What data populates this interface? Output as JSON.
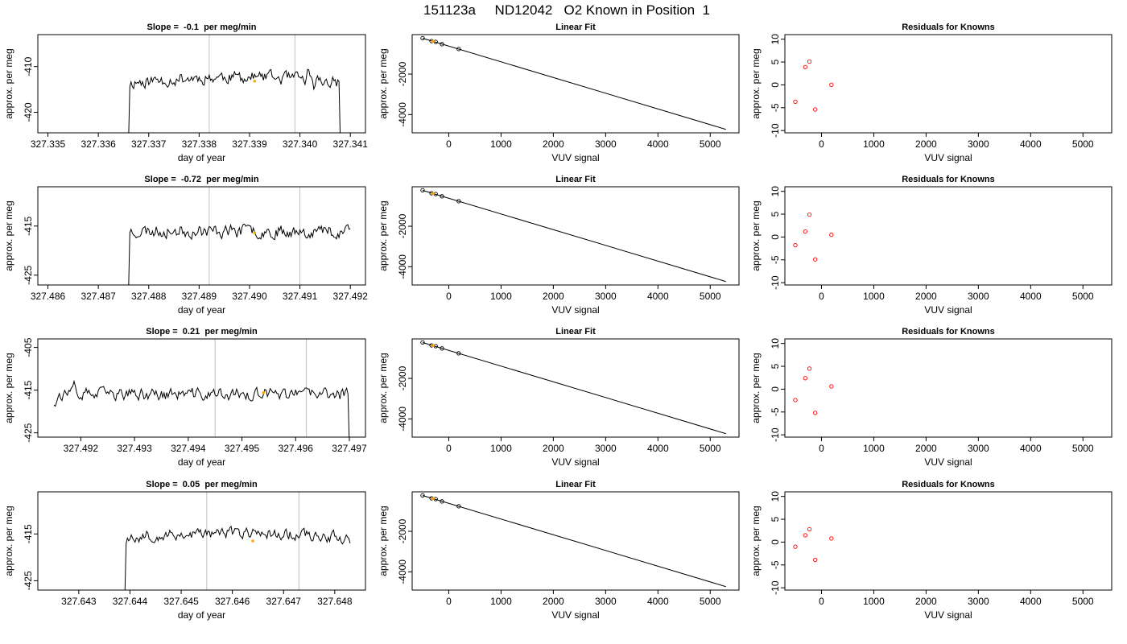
{
  "figure": {
    "title": "151123a     ND12042   O2 Known in Position  1"
  },
  "colors": {
    "trace": "#000000",
    "vline": "#bebebe",
    "marker": "#ffa500",
    "residual": "#ff0000",
    "fitline": "#000000"
  },
  "chart_data": [
    {
      "type": "line",
      "row": 0,
      "col": 0,
      "title": "Slope =  -0.1  per meg/min",
      "xlabel": "day of year",
      "ylabel": "approx. per meg",
      "xlim": [
        327.3348,
        327.3413
      ],
      "ylim": [
        -424.5,
        -403
      ],
      "xticks": [
        327.335,
        327.336,
        327.337,
        327.338,
        327.339,
        327.34,
        327.341
      ],
      "xtick_labels": [
        "327.335",
        "327.336",
        "327.337",
        "327.338",
        "327.339",
        "327.340",
        "327.341"
      ],
      "yticks": [
        -410,
        -420
      ],
      "ytick_labels": [
        "-410",
        "-420"
      ],
      "trace": {
        "start": 327.3366,
        "end": 327.3408,
        "step": 2.5e-05,
        "base": -413.5,
        "amp": 2.2,
        "drop_start": -426,
        "drop_end": -426,
        "seed": 11,
        "tilt": 1.2
      },
      "vlines": [
        327.3382,
        327.3399
      ],
      "marker": {
        "x": 327.3391,
        "y": -413.2
      }
    },
    {
      "type": "scatter",
      "row": 0,
      "col": 1,
      "title": "Linear Fit",
      "xlabel": "VUV signal",
      "ylabel": "approx. per meg",
      "xlim": [
        -700,
        5550
      ],
      "ylim": [
        -4900,
        -50
      ],
      "xticks": [
        0,
        1000,
        2000,
        3000,
        4000,
        5000
      ],
      "xtick_labels": [
        "0",
        "1000",
        "2000",
        "3000",
        "4000",
        "5000"
      ],
      "yticks": [
        -2000,
        -4000
      ],
      "ytick_labels": [
        "-2000",
        "-4000"
      ],
      "fitline": {
        "x": [
          -500,
          5300
        ],
        "y": [
          -230,
          -4730
        ]
      },
      "points": {
        "x": [
          -500,
          -330,
          -250,
          -130,
          190
        ],
        "y": [
          -225,
          -370,
          -410,
          -520,
          -760
        ]
      },
      "marker": {
        "x": -300,
        "y": -380
      }
    },
    {
      "type": "scatter",
      "row": 0,
      "col": 2,
      "title": "Residuals for Knowns",
      "xlabel": "VUV signal",
      "ylabel": "approx. per meg",
      "xlim": [
        -700,
        5550
      ],
      "ylim": [
        -10.5,
        11
      ],
      "xticks": [
        0,
        1000,
        2000,
        3000,
        4000,
        5000
      ],
      "xtick_labels": [
        "0",
        "1000",
        "2000",
        "3000",
        "4000",
        "5000"
      ],
      "yticks": [
        10,
        5,
        0,
        -5,
        -10
      ],
      "ytick_labels": [
        "10",
        "5",
        "0",
        "-5",
        "-10"
      ],
      "points": {
        "x": [
          -500,
          -310,
          -230,
          -120,
          190
        ],
        "y": [
          -3.7,
          3.9,
          5.1,
          -5.4,
          0.0
        ]
      }
    },
    {
      "type": "line",
      "row": 1,
      "col": 0,
      "title": "Slope =  -0.72  per meg/min",
      "xlabel": "day of year",
      "ylabel": "approx. per meg",
      "xlim": [
        327.4858,
        327.4923
      ],
      "ylim": [
        -427,
        -407
      ],
      "xticks": [
        327.486,
        327.487,
        327.488,
        327.489,
        327.49,
        327.491,
        327.492
      ],
      "xtick_labels": [
        "327.486",
        "327.487",
        "327.488",
        "327.489",
        "327.490",
        "327.491",
        "327.492"
      ],
      "yticks": [
        -415,
        -425
      ],
      "ytick_labels": [
        "-415",
        "-425"
      ],
      "trace": {
        "start": 327.4876,
        "end": 327.492,
        "step": 2.5e-05,
        "base": -416.0,
        "amp": 2.1,
        "drop_start": -428,
        "drop_end": -415.5,
        "seed": 23,
        "tilt": 0.0
      },
      "vlines": [
        327.4892,
        327.491
      ],
      "marker": {
        "x": 327.4901,
        "y": -416.4
      }
    },
    {
      "type": "scatter",
      "row": 1,
      "col": 1,
      "title": "Linear Fit",
      "xlabel": "VUV signal",
      "ylabel": "approx. per meg",
      "xlim": [
        -700,
        5550
      ],
      "ylim": [
        -4900,
        -50
      ],
      "xticks": [
        0,
        1000,
        2000,
        3000,
        4000,
        5000
      ],
      "xtick_labels": [
        "0",
        "1000",
        "2000",
        "3000",
        "4000",
        "5000"
      ],
      "yticks": [
        -2000,
        -4000
      ],
      "ytick_labels": [
        "-2000",
        "-4000"
      ],
      "fitline": {
        "x": [
          -500,
          5300
        ],
        "y": [
          -230,
          -4730
        ]
      },
      "points": {
        "x": [
          -500,
          -330,
          -250,
          -130,
          190
        ],
        "y": [
          -225,
          -370,
          -410,
          -520,
          -760
        ]
      },
      "marker": {
        "x": -300,
        "y": -380
      }
    },
    {
      "type": "scatter",
      "row": 1,
      "col": 2,
      "title": "Residuals for Knowns",
      "xlabel": "VUV signal",
      "ylabel": "approx. per meg",
      "xlim": [
        -700,
        5550
      ],
      "ylim": [
        -10.5,
        11
      ],
      "xticks": [
        0,
        1000,
        2000,
        3000,
        4000,
        5000
      ],
      "xtick_labels": [
        "0",
        "1000",
        "2000",
        "3000",
        "4000",
        "5000"
      ],
      "yticks": [
        10,
        5,
        0,
        -5,
        -10
      ],
      "ytick_labels": [
        "10",
        "5",
        "0",
        "-5",
        "-10"
      ],
      "points": {
        "x": [
          -500,
          -310,
          -230,
          -120,
          190
        ],
        "y": [
          -1.8,
          1.2,
          4.9,
          -4.9,
          0.5
        ]
      }
    },
    {
      "type": "line",
      "row": 2,
      "col": 0,
      "title": "Slope =  0.21  per meg/min",
      "xlabel": "day of year",
      "ylabel": "approx. per meg",
      "xlim": [
        327.4912,
        327.4973
      ],
      "ylim": [
        -426,
        -403
      ],
      "xticks": [
        327.492,
        327.493,
        327.494,
        327.495,
        327.496,
        327.497
      ],
      "xtick_labels": [
        "327.492",
        "327.493",
        "327.494",
        "327.495",
        "327.496",
        "327.497"
      ],
      "yticks": [
        -405,
        -415,
        -425
      ],
      "ytick_labels": [
        "-405",
        "-415",
        "-425"
      ],
      "trace": {
        "start": 327.4915,
        "end": 327.497,
        "step": 2.5e-05,
        "base": -416.0,
        "amp": 2.3,
        "drop_start": -418.5,
        "drop_end": -428,
        "seed": 37,
        "tilt": 0.0
      },
      "vlines": [
        327.4945,
        327.4962
      ],
      "marker": {
        "x": 327.4954,
        "y": -415.6
      }
    },
    {
      "type": "scatter",
      "row": 2,
      "col": 1,
      "title": "Linear Fit",
      "xlabel": "VUV signal",
      "ylabel": "approx. per meg",
      "xlim": [
        -700,
        5550
      ],
      "ylim": [
        -4900,
        -50
      ],
      "xticks": [
        0,
        1000,
        2000,
        3000,
        4000,
        5000
      ],
      "xtick_labels": [
        "0",
        "1000",
        "2000",
        "3000",
        "4000",
        "5000"
      ],
      "yticks": [
        -2000,
        -4000
      ],
      "ytick_labels": [
        "-2000",
        "-4000"
      ],
      "fitline": {
        "x": [
          -500,
          5300
        ],
        "y": [
          -230,
          -4730
        ]
      },
      "points": {
        "x": [
          -500,
          -330,
          -250,
          -130,
          190
        ],
        "y": [
          -225,
          -370,
          -410,
          -520,
          -760
        ]
      },
      "marker": {
        "x": -300,
        "y": -380
      }
    },
    {
      "type": "scatter",
      "row": 2,
      "col": 2,
      "title": "Residuals for Knowns",
      "xlabel": "VUV signal",
      "ylabel": "approx. per meg",
      "xlim": [
        -700,
        5550
      ],
      "ylim": [
        -10.5,
        11
      ],
      "xticks": [
        0,
        1000,
        2000,
        3000,
        4000,
        5000
      ],
      "xtick_labels": [
        "0",
        "1000",
        "2000",
        "3000",
        "4000",
        "5000"
      ],
      "yticks": [
        10,
        5,
        0,
        -5,
        -10
      ],
      "ytick_labels": [
        "10",
        "5",
        "0",
        "-5",
        "-10"
      ],
      "points": {
        "x": [
          -500,
          -310,
          -230,
          -120,
          190
        ],
        "y": [
          -2.4,
          2.4,
          4.5,
          -5.2,
          0.6
        ]
      }
    },
    {
      "type": "line",
      "row": 3,
      "col": 0,
      "title": "Slope =  0.05  per meg/min",
      "xlabel": "day of year",
      "ylabel": "approx. per meg",
      "xlim": [
        327.6422,
        327.6486
      ],
      "ylim": [
        -427,
        -406
      ],
      "xticks": [
        327.643,
        327.644,
        327.645,
        327.646,
        327.647,
        327.648
      ],
      "xtick_labels": [
        "327.643",
        "327.644",
        "327.645",
        "327.646",
        "327.647",
        "327.648"
      ],
      "yticks": [
        -415,
        -425
      ],
      "ytick_labels": [
        "-415",
        "-425"
      ],
      "trace": {
        "start": 327.6439,
        "end": 327.6483,
        "step": 2.5e-05,
        "base": -415.8,
        "amp": 1.9,
        "drop_start": -428,
        "drop_end": -417,
        "seed": 53,
        "tilt": 1.0
      },
      "vlines": [
        327.6455,
        327.6473
      ],
      "marker": {
        "x": 327.6464,
        "y": -416.5
      }
    },
    {
      "type": "scatter",
      "row": 3,
      "col": 1,
      "title": "Linear Fit",
      "xlabel": "VUV signal",
      "ylabel": "approx. per meg",
      "xlim": [
        -700,
        5550
      ],
      "ylim": [
        -4900,
        -50
      ],
      "xticks": [
        0,
        1000,
        2000,
        3000,
        4000,
        5000
      ],
      "xtick_labels": [
        "0",
        "1000",
        "2000",
        "3000",
        "4000",
        "5000"
      ],
      "yticks": [
        -2000,
        -4000
      ],
      "ytick_labels": [
        "-2000",
        "-4000"
      ],
      "fitline": {
        "x": [
          -500,
          5300
        ],
        "y": [
          -230,
          -4730
        ]
      },
      "points": {
        "x": [
          -500,
          -330,
          -250,
          -130,
          190
        ],
        "y": [
          -225,
          -370,
          -410,
          -520,
          -760
        ]
      },
      "marker": {
        "x": -300,
        "y": -380
      }
    },
    {
      "type": "scatter",
      "row": 3,
      "col": 2,
      "title": "Residuals for Knowns",
      "xlabel": "VUV signal",
      "ylabel": "approx. per meg",
      "xlim": [
        -700,
        5550
      ],
      "ylim": [
        -10.5,
        11
      ],
      "xticks": [
        0,
        1000,
        2000,
        3000,
        4000,
        5000
      ],
      "xtick_labels": [
        "0",
        "1000",
        "2000",
        "3000",
        "4000",
        "5000"
      ],
      "yticks": [
        10,
        5,
        0,
        -5,
        -10
      ],
      "ytick_labels": [
        "10",
        "5",
        "0",
        "-5",
        "-10"
      ],
      "points": {
        "x": [
          -500,
          -310,
          -230,
          -120,
          190
        ],
        "y": [
          -1.0,
          1.5,
          2.8,
          -3.9,
          0.8
        ]
      }
    }
  ]
}
